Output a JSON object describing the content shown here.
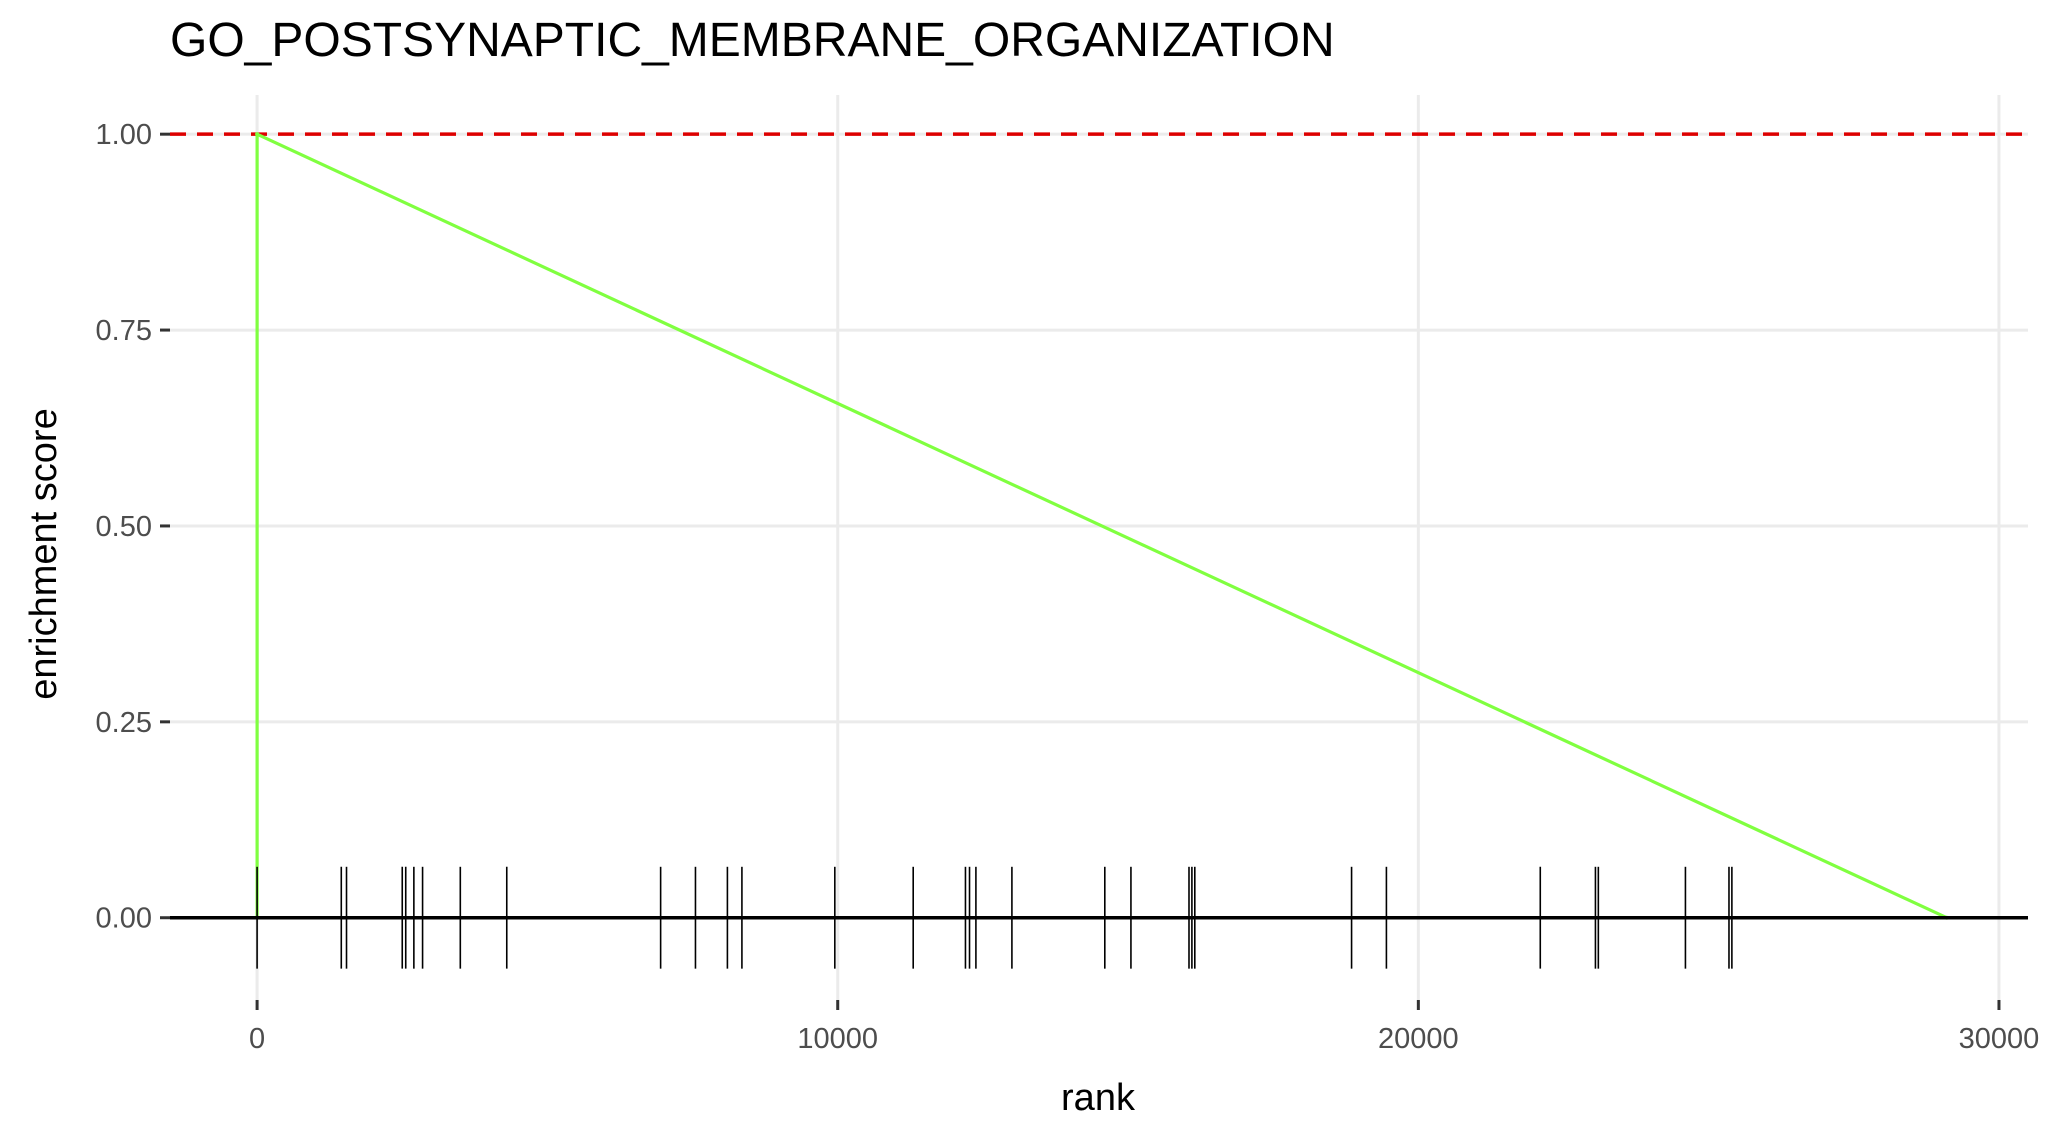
{
  "chart_data": {
    "type": "line",
    "title": "GO_POSTSYNAPTIC_MEMBRANE_ORGANIZATION",
    "xlabel": "rank",
    "ylabel": "enrichment score",
    "xlim": [
      -1500,
      30500
    ],
    "ylim": [
      -0.105,
      1.05
    ],
    "x_ticks": [
      0,
      10000,
      20000,
      30000
    ],
    "x_tick_labels": [
      "0",
      "10000",
      "20000",
      "30000"
    ],
    "y_ticks": [
      0.0,
      0.25,
      0.5,
      0.75,
      1.0
    ],
    "y_tick_labels": [
      "0.00",
      "0.25",
      "0.50",
      "0.75",
      "1.00"
    ],
    "grid": true,
    "reference_line": {
      "y": 1.0,
      "color": "#dd0000",
      "style": "dashed"
    },
    "series": [
      {
        "color": "#80ff40",
        "points": [
          [
            0,
            0.0
          ],
          [
            0,
            1.0
          ],
          [
            29100,
            0.0
          ]
        ]
      }
    ],
    "hit_ranks": [
      0,
      1450,
      1540,
      2500,
      2560,
      2700,
      2850,
      3500,
      4300,
      6950,
      7550,
      8100,
      8350,
      9950,
      11300,
      12200,
      12270,
      12380,
      13000,
      14600,
      15050,
      16050,
      16100,
      16150,
      18850,
      19450,
      22100,
      23050,
      23100,
      24600,
      25350,
      25400
    ],
    "baseline_color": "#000000"
  }
}
